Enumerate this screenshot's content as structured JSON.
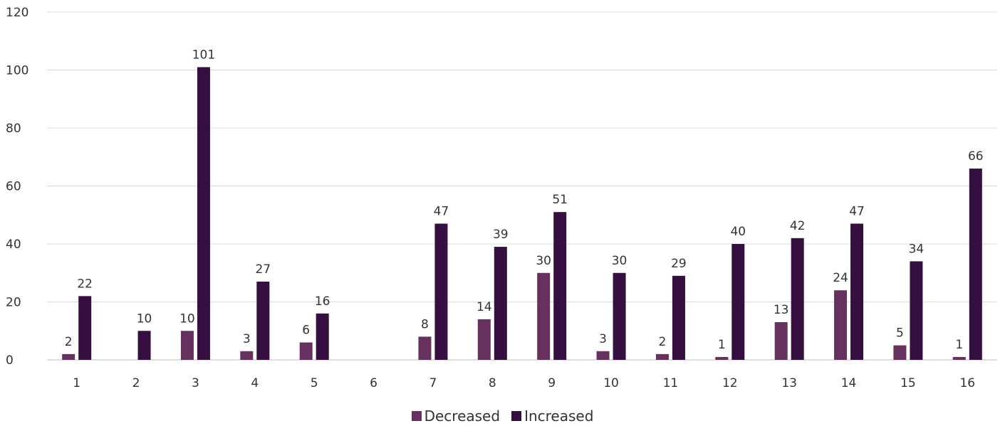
{
  "chart_data": {
    "type": "bar",
    "categories": [
      "1",
      "2",
      "3",
      "4",
      "5",
      "6",
      "7",
      "8",
      "9",
      "10",
      "11",
      "12",
      "13",
      "14",
      "15",
      "16"
    ],
    "series": [
      {
        "name": "Decreased",
        "color": "#66305f",
        "values": [
          2,
          null,
          10,
          3,
          6,
          null,
          8,
          14,
          30,
          3,
          2,
          1,
          13,
          24,
          5,
          1
        ]
      },
      {
        "name": "Increased",
        "color": "#340f40",
        "values": [
          22,
          10,
          101,
          27,
          16,
          null,
          47,
          39,
          51,
          30,
          29,
          40,
          42,
          47,
          34,
          66
        ]
      }
    ],
    "yticks": [
      "0",
      "20",
      "40",
      "60",
      "80",
      "100",
      "120"
    ],
    "ylim": [
      0,
      120
    ],
    "grid": true,
    "legend_position": "bottom"
  }
}
